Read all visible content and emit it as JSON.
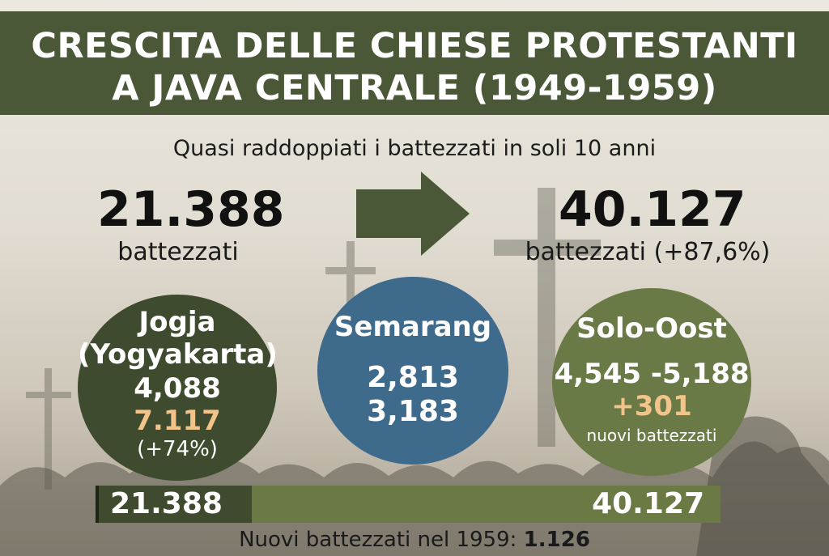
{
  "header": {
    "title_line1": "CRESCITA DELLE CHIESE PROTESTANTI",
    "title_line2": "A JAVA CENTRALE (1949-1959)"
  },
  "subtitle": "Quasi raddoppiati i battezzati in soli 10 anni",
  "start": {
    "value": "21.388",
    "label": "battezzati"
  },
  "end": {
    "value": "40.127",
    "label": "battezzati (+87,6%)"
  },
  "regions": {
    "jogja": {
      "name_line1": "Jogja",
      "name_line2": "(Yogyakarta)",
      "value_before": "4,088",
      "value_after": "7.117",
      "change": "(+74%)"
    },
    "semarang": {
      "name": "Semarang",
      "value_before": "2,813",
      "value_after": "3,183"
    },
    "solo_oost": {
      "name": "Solo-Oost",
      "values": "4,545 -5,188",
      "increase": "+301",
      "increase_label": "nuovi battezzati"
    }
  },
  "bar": {
    "start_label": "21.388",
    "end_label": "40.127",
    "fill_fraction": 0.25
  },
  "footer": {
    "label": "Nuovi battezzati nel 1959: ",
    "value": "1.126"
  },
  "colors": {
    "header": "#4a5837",
    "arrow": "#4a5837",
    "jogja_circle": "#3e4b2e",
    "semarang_circle": "#3e6a8c",
    "solo_circle": "#6a7a46",
    "highlight": "#f3c48a"
  },
  "icons": {
    "arrow": "right-arrow-icon",
    "background": "crosses-silhouette"
  }
}
